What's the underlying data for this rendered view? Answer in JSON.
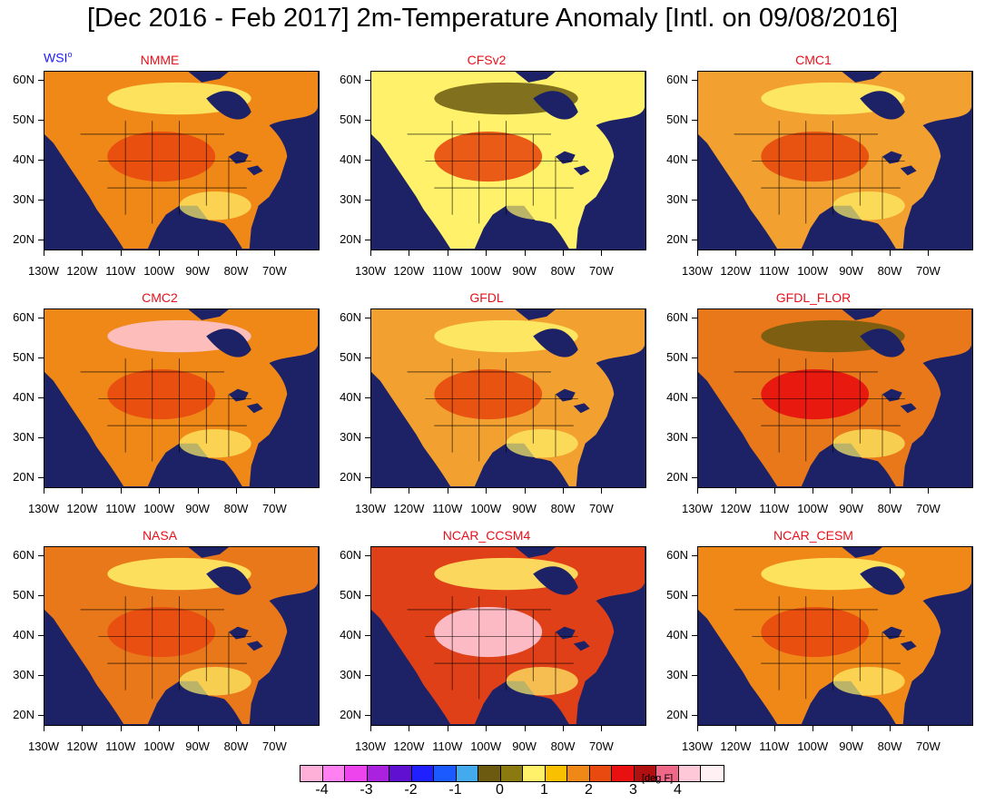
{
  "title": "[Dec 2016 - Feb 2017] 2m-Temperature Anomaly [Intl. on 09/08/2016]",
  "logo": "WSI°",
  "y_ticks": [
    "20N",
    "30N",
    "40N",
    "50N",
    "60N"
  ],
  "x_ticks": [
    "130W",
    "120W",
    "110W",
    "100W",
    "90W",
    "80W",
    "70W"
  ],
  "panels": [
    {
      "name": "NMME",
      "dominant": "+1 to +3",
      "base": "#f08818"
    },
    {
      "name": "CFSv2",
      "dominant": "0 to +2",
      "base": "#fff26a"
    },
    {
      "name": "CMC1",
      "dominant": "+1 to +3",
      "base": "#f2a030"
    },
    {
      "name": "CMC2",
      "dominant": "0 to +4",
      "base": "#f08818"
    },
    {
      "name": "GFDL",
      "dominant": "+1 to +3",
      "base": "#f2a030"
    },
    {
      "name": "GFDL_FLOR",
      "dominant": "0 to +3",
      "base": "#e8781a"
    },
    {
      "name": "NASA",
      "dominant": "-1 to +4",
      "base": "#e8781a"
    },
    {
      "name": "NCAR_CCSM4",
      "dominant": "-2 to +4",
      "base": "#e04018"
    },
    {
      "name": "NCAR_CESM",
      "dominant": "0 to +4",
      "base": "#f08818"
    }
  ],
  "legend": {
    "colors": [
      "#ffb0d8",
      "#ff80f0",
      "#ee44ee",
      "#aa22dd",
      "#6010d0",
      "#2020ff",
      "#1a5aff",
      "#44aaee",
      "#6b5a10",
      "#8a7a10",
      "#fff26a",
      "#f8c000",
      "#f08818",
      "#e84a10",
      "#e81010",
      "#b01010",
      "#f06888",
      "#ffc8d8",
      "#fff0f4"
    ],
    "labels": [
      "-4",
      "-3",
      "-2",
      "-1",
      "0",
      "1",
      "2",
      "3",
      "4"
    ],
    "units": "[deg F]"
  }
}
